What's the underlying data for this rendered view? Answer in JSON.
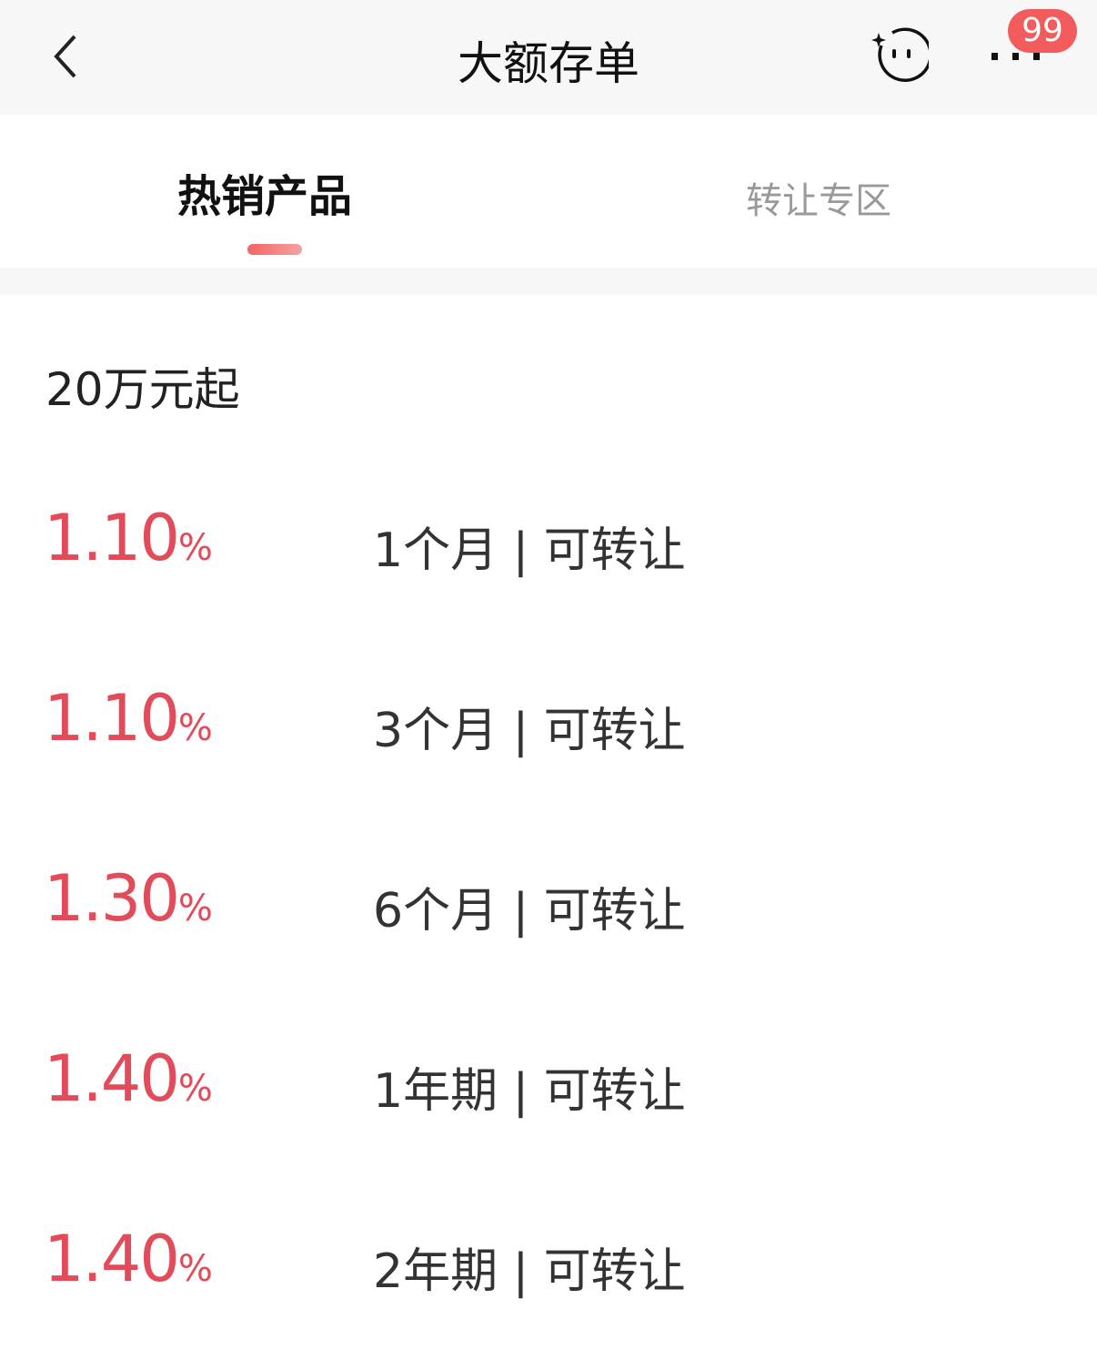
{
  "header": {
    "title": "大额存单",
    "badge": "99",
    "icons": [
      "back-icon",
      "robot-assistant-icon",
      "more-icon"
    ]
  },
  "tabs": [
    {
      "label": "热销产品",
      "active": true
    },
    {
      "label": "转让专区",
      "active": false
    }
  ],
  "section_title": "20万元起",
  "products": [
    {
      "rate": "1.10",
      "unit": "%",
      "term": "1个月 | 可转让"
    },
    {
      "rate": "1.10",
      "unit": "%",
      "term": "3个月 | 可转让"
    },
    {
      "rate": "1.30",
      "unit": "%",
      "term": "6个月 | 可转让"
    },
    {
      "rate": "1.40",
      "unit": "%",
      "term": "1年期 | 可转让"
    },
    {
      "rate": "1.40",
      "unit": "%",
      "term": "2年期 | 可转让"
    }
  ],
  "colors": {
    "accent": "#e24c5a",
    "badge": "#f25c5c"
  }
}
